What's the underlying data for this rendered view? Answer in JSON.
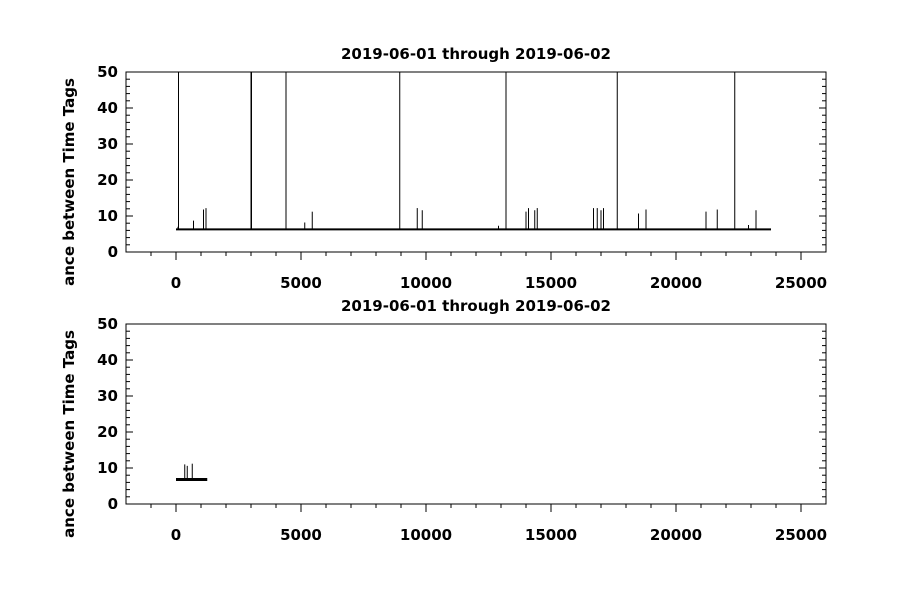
{
  "chart_data": [
    {
      "type": "line",
      "title": "2019-06-01 through 2019-06-02",
      "ylabel": "ance between Time Tags",
      "xlabel": "",
      "xlim": [
        -2000,
        26000
      ],
      "ylim": [
        0,
        50
      ],
      "xticks": [
        0,
        5000,
        10000,
        15000,
        20000,
        25000
      ],
      "xtick_labels": [
        "0",
        "5000",
        "10000",
        "15000",
        "20000",
        "25000"
      ],
      "yticks": [
        0,
        10,
        20,
        30,
        40,
        50
      ],
      "ytick_labels": [
        "0",
        "10",
        "20",
        "30",
        "40",
        "50"
      ],
      "baseline": {
        "x_start": 0,
        "x_end": 23800,
        "value": 6.3
      },
      "spikes": [
        {
          "x": 80,
          "y": 7.0
        },
        {
          "x": 100,
          "y": 50
        },
        {
          "x": 700,
          "y": 8.7
        },
        {
          "x": 1100,
          "y": 11.8
        },
        {
          "x": 1200,
          "y": 12.2
        },
        {
          "x": 3000,
          "y": 50
        },
        {
          "x": 3020,
          "y": 50
        },
        {
          "x": 4400,
          "y": 50
        },
        {
          "x": 5150,
          "y": 8.2
        },
        {
          "x": 5450,
          "y": 11.2
        },
        {
          "x": 8950,
          "y": 50
        },
        {
          "x": 9650,
          "y": 12.2
        },
        {
          "x": 9850,
          "y": 11.6
        },
        {
          "x": 12900,
          "y": 7.3
        },
        {
          "x": 13200,
          "y": 50
        },
        {
          "x": 14000,
          "y": 11.2
        },
        {
          "x": 14100,
          "y": 12.2
        },
        {
          "x": 14350,
          "y": 11.6
        },
        {
          "x": 14450,
          "y": 12.2
        },
        {
          "x": 16700,
          "y": 12.2
        },
        {
          "x": 16850,
          "y": 12.2
        },
        {
          "x": 17000,
          "y": 11.6
        },
        {
          "x": 17100,
          "y": 12.2
        },
        {
          "x": 17650,
          "y": 50
        },
        {
          "x": 18500,
          "y": 10.7
        },
        {
          "x": 18800,
          "y": 11.8
        },
        {
          "x": 21200,
          "y": 11.2
        },
        {
          "x": 21650,
          "y": 11.8
        },
        {
          "x": 22350,
          "y": 50
        },
        {
          "x": 22900,
          "y": 7.5
        },
        {
          "x": 23200,
          "y": 11.6
        }
      ]
    },
    {
      "type": "line",
      "title": "2019-06-01 through 2019-06-02",
      "ylabel": "ance between Time Tags",
      "xlabel": "",
      "xlim": [
        -2000,
        26000
      ],
      "ylim": [
        0,
        50
      ],
      "xticks": [
        0,
        5000,
        10000,
        15000,
        20000,
        25000
      ],
      "xtick_labels": [
        "0",
        "5000",
        "10000",
        "15000",
        "20000",
        "25000"
      ],
      "yticks": [
        0,
        10,
        20,
        30,
        40,
        50
      ],
      "ytick_labels": [
        "0",
        "10",
        "20",
        "30",
        "40",
        "50"
      ],
      "baseline": {
        "x_start": 0,
        "x_end": 1250,
        "value": 6.8
      },
      "spikes": [
        {
          "x": 350,
          "y": 11.0
        },
        {
          "x": 450,
          "y": 10.6
        },
        {
          "x": 650,
          "y": 11.2
        }
      ]
    }
  ]
}
